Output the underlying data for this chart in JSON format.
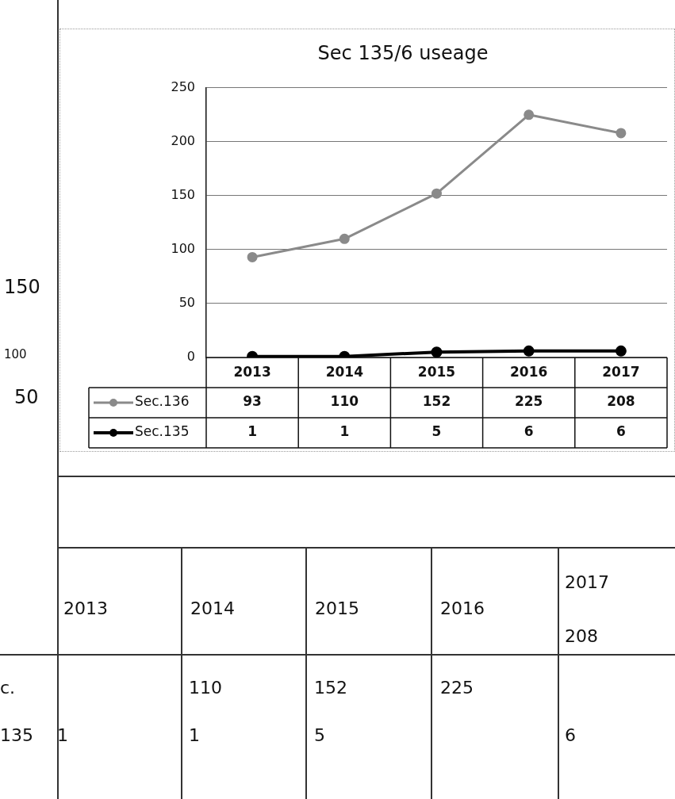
{
  "chart_data": {
    "type": "line",
    "title": "Sec 135/6 useage",
    "categories": [
      "2013",
      "2014",
      "2015",
      "2016",
      "2017"
    ],
    "series": [
      {
        "name": "Sec.136",
        "color": "#8a8a8a",
        "values": [
          93,
          110,
          152,
          225,
          208
        ]
      },
      {
        "name": "Sec.135",
        "color": "#000000",
        "values": [
          1,
          1,
          5,
          6,
          6
        ]
      }
    ],
    "ylim": [
      0,
      250
    ],
    "yticks": [
      0,
      50,
      100,
      150,
      200,
      250
    ],
    "grid": "y",
    "marker": "circle",
    "line_style": "solid",
    "legend": "bottom",
    "data_labels": true,
    "annotations": [
      "150",
      "100",
      "50",
      "2013",
      "2014",
      "2015",
      "2016",
      "2017",
      "208",
      "c.",
      "135",
      "1",
      "110",
      "1",
      "152",
      "5",
      "225",
      "6"
    ]
  }
}
